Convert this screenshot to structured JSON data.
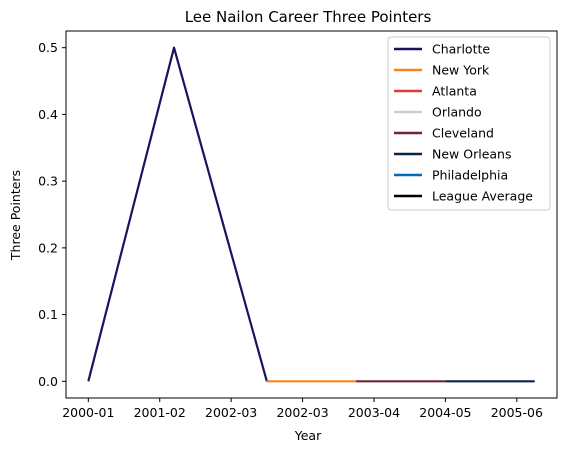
{
  "chart_data": {
    "type": "line",
    "title": "Lee Nailon Career Three Pointers",
    "xlabel": "Year",
    "ylabel": "Three Pointers",
    "x_ticks": [
      "2000-01",
      "2001-02",
      "2002-03",
      "2002-03",
      "2003-04",
      "2004-05",
      "2005-06"
    ],
    "y_ticks": [
      "0.0",
      "0.1",
      "0.2",
      "0.3",
      "0.4",
      "0.5"
    ],
    "ylim": [
      -0.025,
      0.525
    ],
    "legend_position": "top-right",
    "grid": false,
    "series": [
      {
        "name": "Charlotte",
        "color": "#1d1160",
        "points": [
          [
            0,
            0.0
          ],
          [
            1.2,
            0.5
          ],
          [
            2.5,
            0.0
          ]
        ]
      },
      {
        "name": "New York",
        "color": "#f58426",
        "points": [
          [
            2.5,
            0.0
          ],
          [
            3.75,
            0.0
          ]
        ]
      },
      {
        "name": "Atlanta",
        "color": "#e03a3e",
        "points": []
      },
      {
        "name": "Orlando",
        "color": "#c4ced4",
        "points": []
      },
      {
        "name": "Cleveland",
        "color": "#6f263d",
        "points": [
          [
            3.75,
            0.0
          ],
          [
            5.0,
            0.0
          ]
        ]
      },
      {
        "name": "New Orleans",
        "color": "#0c2340",
        "points": [
          [
            5.0,
            0.0
          ],
          [
            6.25,
            0.0
          ]
        ]
      },
      {
        "name": "Philadelphia",
        "color": "#006bb6",
        "points": []
      },
      {
        "name": "League Average",
        "color": "#000000",
        "points": []
      }
    ]
  }
}
